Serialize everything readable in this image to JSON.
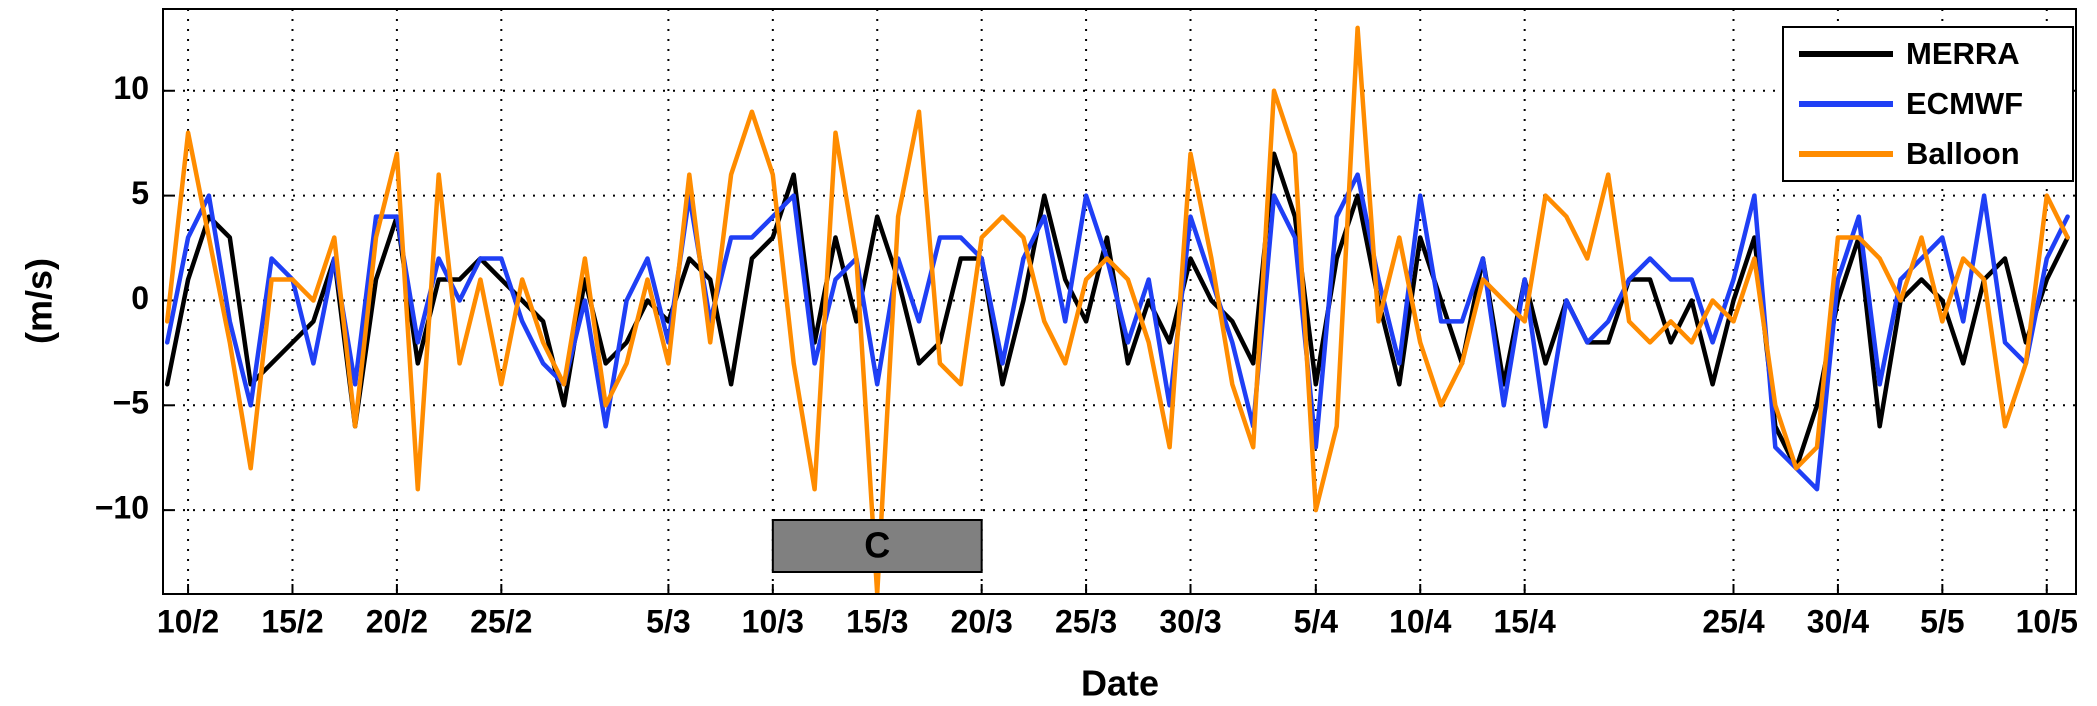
{
  "chart_data": {
    "type": "line",
    "xlabel": "Date",
    "ylabel": "(m/s)",
    "x": [
      40,
      41,
      42,
      43,
      44,
      45,
      46,
      47,
      48,
      49,
      50,
      51,
      52,
      53,
      54,
      55,
      56,
      57,
      58,
      59,
      60,
      61,
      62,
      63,
      64,
      65,
      66,
      67,
      68,
      69,
      70,
      71,
      72,
      73,
      74,
      75,
      76,
      77,
      78,
      79,
      80,
      81,
      82,
      83,
      84,
      85,
      86,
      87,
      88,
      89,
      90,
      91,
      92,
      93,
      94,
      95,
      96,
      97,
      98,
      99,
      100,
      101,
      102,
      103,
      104,
      105,
      106,
      107,
      108,
      109,
      110,
      111,
      112,
      113,
      114,
      115,
      116,
      117,
      118,
      119,
      120,
      121,
      122,
      123,
      124,
      125,
      126,
      127,
      128,
      129,
      130,
      131
    ],
    "series": [
      {
        "name": "MERRA",
        "color": "#000000",
        "values": [
          -4,
          1,
          4,
          3,
          -4,
          -3,
          -2,
          -1,
          2,
          -6,
          1,
          4,
          -3,
          1,
          1,
          2,
          1,
          0,
          -1,
          -5,
          1,
          -3,
          -2,
          0,
          -1,
          2,
          1,
          -4,
          2,
          3,
          6,
          -2,
          3,
          -1,
          4,
          1,
          -3,
          -2,
          2,
          2,
          -4,
          0,
          5,
          1,
          -1,
          3,
          -3,
          0,
          -2,
          2,
          0,
          -1,
          -3,
          7,
          4,
          -4,
          2,
          5,
          0,
          -4,
          3,
          0,
          -3,
          2,
          -4,
          1,
          -3,
          0,
          -2,
          -2,
          1,
          1,
          -2,
          0,
          -4,
          0,
          3,
          -6,
          -8,
          -5,
          0,
          3,
          -6,
          0,
          1,
          0,
          -3,
          1,
          2,
          -2,
          1,
          3
        ]
      },
      {
        "name": "ECMWF",
        "color": "#1f3ff5",
        "values": [
          -2,
          3,
          5,
          -1,
          -5,
          2,
          1,
          -3,
          2,
          -4,
          4,
          4,
          -2,
          2,
          0,
          2,
          2,
          -1,
          -3,
          -4,
          0,
          -6,
          0,
          2,
          -2,
          5,
          -1,
          3,
          3,
          4,
          5,
          -3,
          1,
          2,
          -4,
          2,
          -1,
          3,
          3,
          2,
          -3,
          2,
          4,
          -1,
          5,
          2,
          -2,
          1,
          -5,
          4,
          1,
          -2,
          -6,
          5,
          3,
          -7,
          4,
          6,
          1,
          -3,
          5,
          -1,
          -1,
          2,
          -5,
          1,
          -6,
          0,
          -2,
          -1,
          1,
          2,
          1,
          1,
          -2,
          1,
          5,
          -7,
          -8,
          -9,
          1,
          4,
          -4,
          1,
          2,
          3,
          -1,
          5,
          -2,
          -3,
          2,
          4
        ]
      },
      {
        "name": "Balloon",
        "color": "#ff8c00",
        "values": [
          -1,
          8,
          3,
          -2,
          -8,
          1,
          1,
          0,
          3,
          -6,
          3,
          7,
          -9,
          6,
          -3,
          1,
          -4,
          1,
          -2,
          -4,
          2,
          -5,
          -3,
          1,
          -3,
          6,
          -2,
          6,
          9,
          6,
          -3,
          -9,
          8,
          2,
          -14,
          4,
          9,
          -3,
          -4,
          3,
          4,
          3,
          -1,
          -3,
          1,
          2,
          1,
          -2,
          -7,
          7,
          2,
          -4,
          -7,
          10,
          7,
          -10,
          -6,
          13,
          -1,
          3,
          -2,
          -5,
          -3,
          1,
          0,
          -1,
          5,
          4,
          2,
          6,
          -1,
          -2,
          -1,
          -2,
          0,
          -1,
          2,
          -5,
          -8,
          -7,
          3,
          3,
          2,
          0,
          3,
          -1,
          2,
          1,
          -6,
          -3,
          5,
          3
        ]
      }
    ],
    "xlim": [
      39.8,
      131.4
    ],
    "xticks": [
      {
        "value": 41,
        "label": "10/2"
      },
      {
        "value": 46,
        "label": "15/2"
      },
      {
        "value": 51,
        "label": "20/2"
      },
      {
        "value": 56,
        "label": "25/2"
      },
      {
        "value": 64,
        "label": "5/3"
      },
      {
        "value": 69,
        "label": "10/3"
      },
      {
        "value": 74,
        "label": "15/3"
      },
      {
        "value": 79,
        "label": "20/3"
      },
      {
        "value": 84,
        "label": "25/3"
      },
      {
        "value": 89,
        "label": "30/3"
      },
      {
        "value": 95,
        "label": "5/4"
      },
      {
        "value": 100,
        "label": "10/4"
      },
      {
        "value": 105,
        "label": "15/4"
      },
      {
        "value": 115,
        "label": "25/4"
      },
      {
        "value": 120,
        "label": "30/4"
      },
      {
        "value": 125,
        "label": "5/5"
      },
      {
        "value": 130,
        "label": "10/5"
      }
    ],
    "ylim": [
      -14,
      13.9
    ],
    "yticks": [
      {
        "value": -10,
        "label": "−10"
      },
      {
        "value": -5,
        "label": "−5"
      },
      0,
      5,
      10
    ],
    "grid": true,
    "legend": "upper right",
    "annotation": {
      "text": "C",
      "x": [
        69,
        79
      ],
      "color": "#808080"
    }
  }
}
